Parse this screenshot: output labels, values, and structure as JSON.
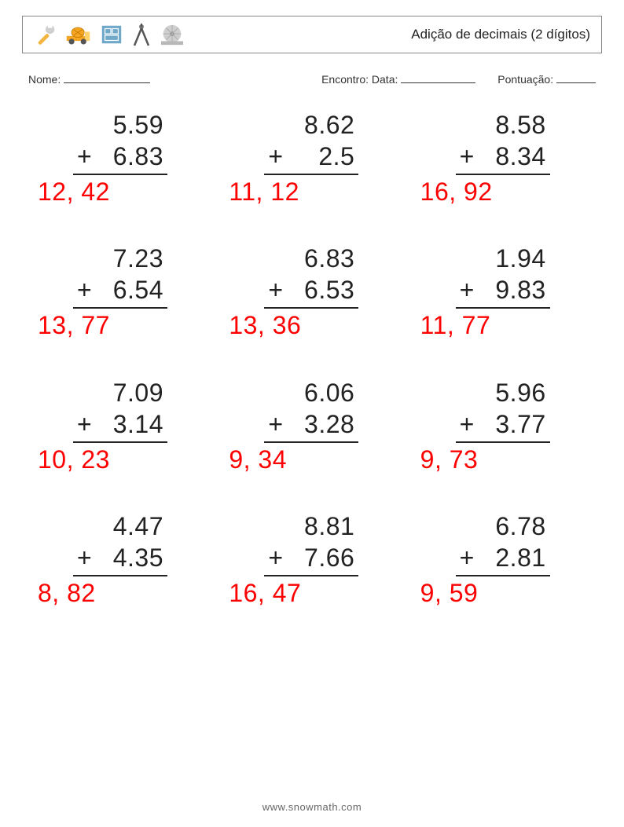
{
  "header": {
    "title": "Adição de decimais (2 dígitos)",
    "icons": [
      "wrench-icon",
      "cement-truck-icon",
      "blueprint-icon",
      "compass-icon",
      "sawblade-icon"
    ]
  },
  "info": {
    "name_label": "Nome:",
    "date_label": "Encontro: Data:",
    "score_label": "Pontuação:",
    "blank_widths": {
      "name": 110,
      "date": 95,
      "score": 50
    }
  },
  "style": {
    "page_bg": "#ffffff",
    "text_color": "#222222",
    "answer_color": "#ff0000",
    "border_color": "#888888",
    "rule_color": "#222222",
    "title_fontsize": 17,
    "info_fontsize": 14,
    "number_fontsize": 32,
    "grid": {
      "cols": 3,
      "rows": 4,
      "row_gap": 46,
      "col_gap": 20
    }
  },
  "problems": [
    {
      "a": "5.59",
      "op": "+",
      "b": "6.83",
      "ans": "12, 42"
    },
    {
      "a": "8.62",
      "op": "+",
      "b": "2.5",
      "ans": "11, 12"
    },
    {
      "a": "8.58",
      "op": "+",
      "b": "8.34",
      "ans": "16, 92"
    },
    {
      "a": "7.23",
      "op": "+",
      "b": "6.54",
      "ans": "13, 77"
    },
    {
      "a": "6.83",
      "op": "+",
      "b": "6.53",
      "ans": "13, 36"
    },
    {
      "a": "1.94",
      "op": "+",
      "b": "9.83",
      "ans": "11, 77"
    },
    {
      "a": "7.09",
      "op": "+",
      "b": "3.14",
      "ans": "10, 23"
    },
    {
      "a": "6.06",
      "op": "+",
      "b": "3.28",
      "ans": " 9, 34"
    },
    {
      "a": "5.96",
      "op": "+",
      "b": "3.77",
      "ans": " 9, 73"
    },
    {
      "a": "4.47",
      "op": "+",
      "b": "4.35",
      "ans": " 8, 82"
    },
    {
      "a": "8.81",
      "op": "+",
      "b": "7.66",
      "ans": "16, 47"
    },
    {
      "a": "6.78",
      "op": "+",
      "b": "2.81",
      "ans": " 9, 59"
    }
  ],
  "footer": {
    "text": "www.snowmath.com"
  }
}
